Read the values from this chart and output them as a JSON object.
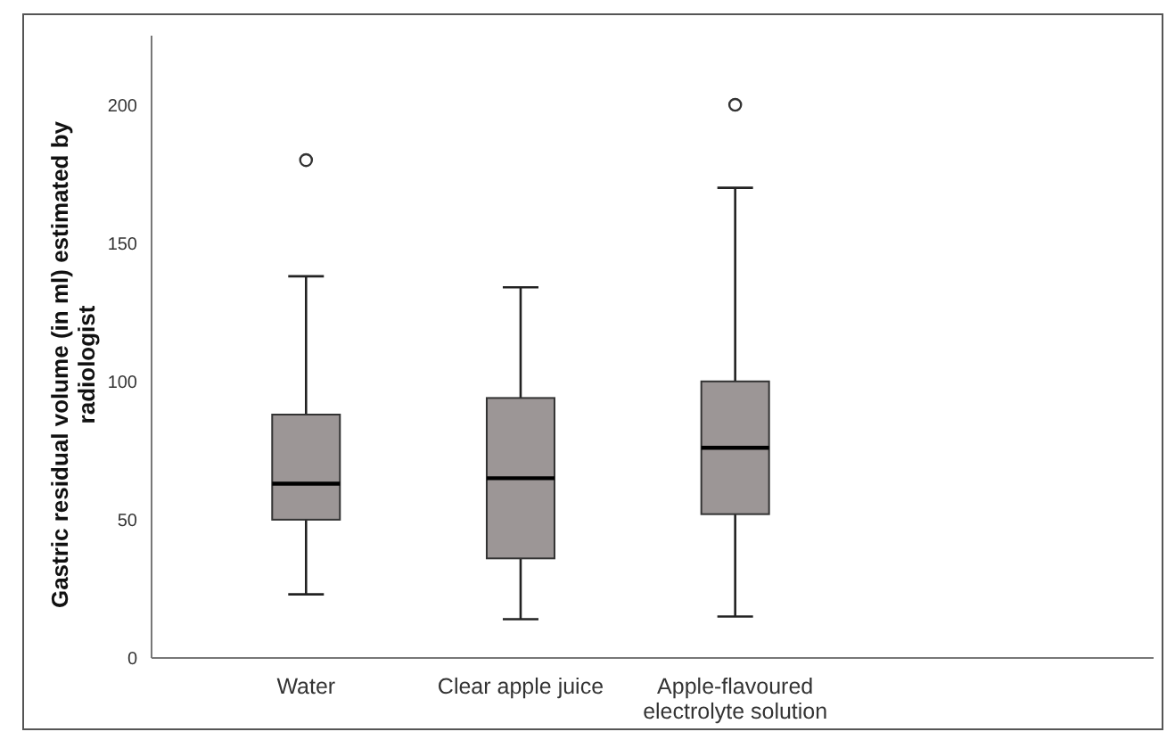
{
  "chart_data": {
    "type": "box",
    "ylabel": "Gastric residual volume (in ml) estimated by radiologist",
    "categories": [
      "Water",
      "Clear apple juice",
      "Apple-flavoured electrolyte solution"
    ],
    "color": "#9c9696",
    "boxes": [
      {
        "low": 23,
        "q1": 50,
        "median": 63,
        "q3": 88,
        "high": 138,
        "outliers": [
          180
        ]
      },
      {
        "low": 14,
        "q1": 36,
        "median": 65,
        "q3": 94,
        "high": 134
      },
      {
        "low": 15,
        "q1": 52,
        "median": 76,
        "q3": 100,
        "high": 170,
        "outliers": [
          200
        ]
      }
    ],
    "ylim": [
      0,
      225
    ],
    "yticks": [
      0,
      50,
      100,
      150,
      200
    ],
    "grid": false
  }
}
